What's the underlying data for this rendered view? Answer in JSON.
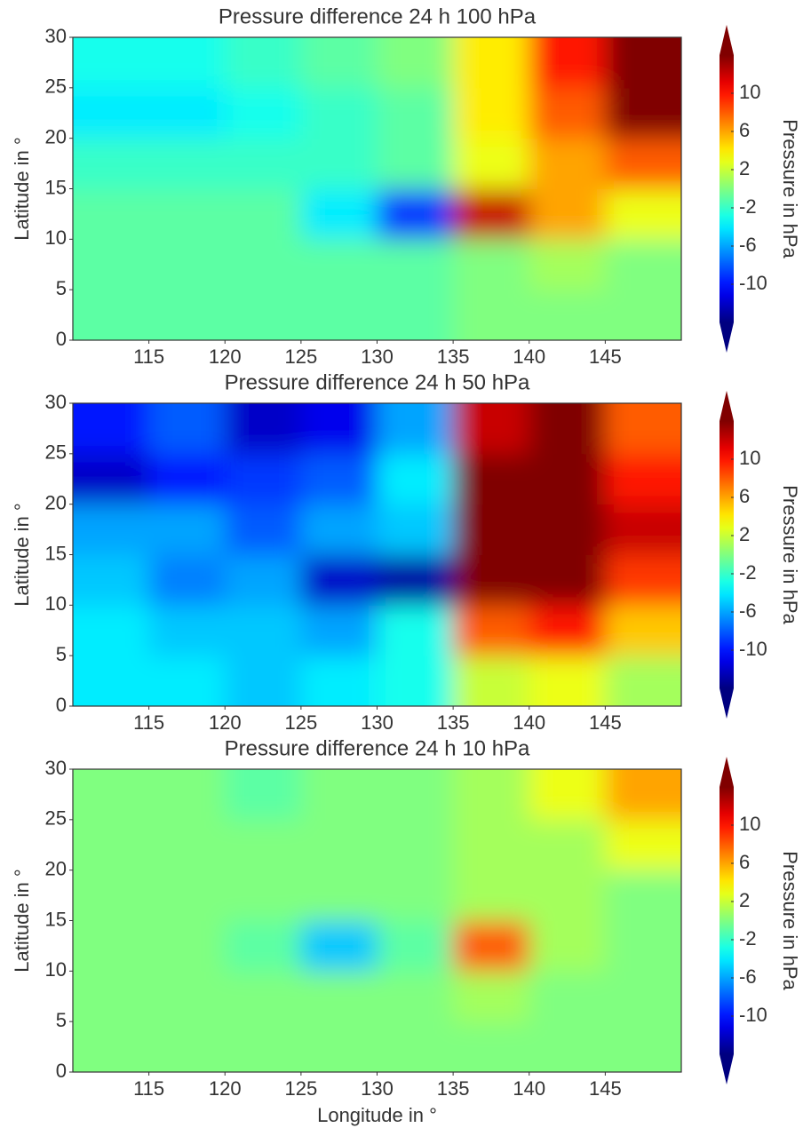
{
  "chart_data": [
    {
      "type": "heatmap",
      "title": "Pressure difference 24 h 100 hPa",
      "ylabel": "Latitude in °",
      "xlim": [
        110,
        150
      ],
      "xticks": [
        115,
        120,
        125,
        130,
        135,
        140,
        145
      ],
      "ylim": [
        0,
        30
      ],
      "yticks": [
        0,
        5,
        10,
        15,
        20,
        25,
        30
      ],
      "colormap": "jet",
      "clim": [
        -14,
        14
      ],
      "extend": "both",
      "colorbar_label": "Pressure in hPa",
      "colorbar_ticks": [
        -10,
        -6,
        -2,
        2,
        6,
        10
      ],
      "z": [
        [
          -1,
          -1,
          -1,
          -1,
          -1,
          0,
          0,
          0
        ],
        [
          -1,
          -1,
          -1,
          -1,
          -1,
          0,
          1,
          0
        ],
        [
          -1,
          -1,
          -1,
          -4,
          -9,
          12,
          6,
          3
        ],
        [
          -2,
          -2,
          -2,
          -2,
          -1,
          3,
          6,
          8
        ],
        [
          -4,
          -4,
          -3,
          -2,
          -1,
          4,
          8,
          14
        ],
        [
          -3,
          -3,
          -2,
          -1,
          0,
          4,
          10,
          14
        ]
      ]
    },
    {
      "type": "heatmap",
      "title": "Pressure difference 24 h 50 hPa",
      "ylabel": "Latitude in °",
      "xlim": [
        110,
        150
      ],
      "xticks": [
        115,
        120,
        125,
        130,
        135,
        140,
        145
      ],
      "ylim": [
        0,
        30
      ],
      "yticks": [
        0,
        5,
        10,
        15,
        20,
        25,
        30
      ],
      "colormap": "jet",
      "clim": [
        -14,
        14
      ],
      "extend": "both",
      "colorbar_label": "Pressure in hPa",
      "colorbar_ticks": [
        -10,
        -6,
        -2,
        2,
        6,
        10
      ],
      "z": [
        [
          -4,
          -4,
          -5,
          -4,
          -3,
          2,
          3,
          1
        ],
        [
          -4,
          -5,
          -5,
          -6,
          -3,
          8,
          10,
          5
        ],
        [
          -5,
          -7,
          -6,
          -12,
          -13,
          14,
          14,
          9
        ],
        [
          -6,
          -6,
          -8,
          -6,
          -5,
          14,
          14,
          12
        ],
        [
          -12,
          -10,
          -9,
          -8,
          -4,
          14,
          14,
          10
        ],
        [
          -10,
          -8,
          -12,
          -11,
          -6,
          12,
          14,
          8
        ]
      ]
    },
    {
      "type": "heatmap",
      "title": "Pressure difference 24 h 10 hPa",
      "ylabel": "Latitude in °",
      "xlabel": "Longitude in °",
      "xlim": [
        110,
        150
      ],
      "xticks": [
        115,
        120,
        125,
        130,
        135,
        140,
        145
      ],
      "ylim": [
        0,
        30
      ],
      "yticks": [
        0,
        5,
        10,
        15,
        20,
        25,
        30
      ],
      "colormap": "jet",
      "clim": [
        -14,
        14
      ],
      "extend": "both",
      "colorbar_label": "Pressure in hPa",
      "colorbar_ticks": [
        -10,
        -6,
        -2,
        2,
        6,
        10
      ],
      "z": [
        [
          0,
          0,
          0,
          0,
          0,
          0,
          0,
          0
        ],
        [
          0,
          0,
          0,
          0,
          0,
          1,
          0,
          0
        ],
        [
          0,
          0,
          -1,
          -5,
          -1,
          8,
          1,
          0
        ],
        [
          0,
          0,
          0,
          0,
          0,
          1,
          1,
          0
        ],
        [
          0,
          0,
          0,
          0,
          0,
          1,
          1,
          3
        ],
        [
          0,
          0,
          -1,
          0,
          0,
          1,
          3,
          6
        ]
      ]
    }
  ]
}
